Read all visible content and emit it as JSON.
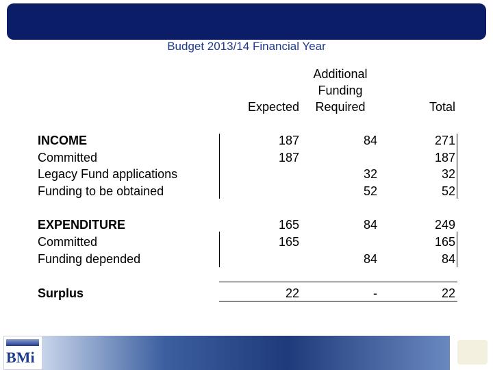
{
  "header": {
    "title": "Budget 2013/14 Financial Year"
  },
  "table": {
    "columns": [
      "Expected",
      "Additional Funding Required",
      "Total"
    ],
    "rows": [
      {
        "label": "INCOME",
        "bold": true,
        "cells": [
          187,
          84,
          271
        ]
      },
      {
        "label": "Committed",
        "bold": false,
        "cells": [
          187,
          null,
          187
        ]
      },
      {
        "label": "Legacy Fund applications",
        "bold": false,
        "cells": [
          null,
          32,
          32
        ]
      },
      {
        "label": "Funding to be obtained",
        "bold": false,
        "cells": [
          null,
          52,
          52
        ]
      },
      {
        "label": "EXPENDITURE",
        "bold": true,
        "cells": [
          165,
          84,
          249
        ]
      },
      {
        "label": "Committed",
        "bold": false,
        "cells": [
          165,
          null,
          165
        ]
      },
      {
        "label": "Funding depended",
        "bold": false,
        "cells": [
          null,
          84,
          84
        ]
      },
      {
        "label": "Surplus",
        "bold": true,
        "cells": [
          22,
          "-",
          22
        ]
      }
    ]
  },
  "footer": {
    "logo": "BMi"
  }
}
